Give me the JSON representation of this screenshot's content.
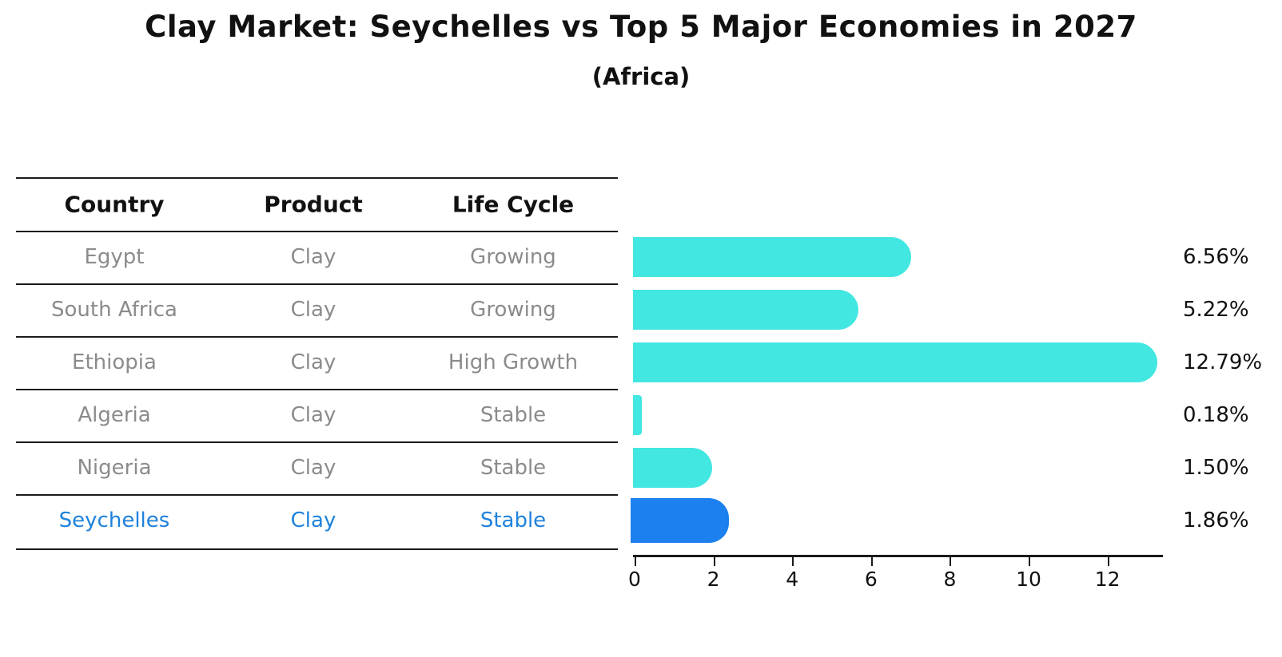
{
  "title": "Clay Market: Seychelles vs Top 5 Major Economies in 2027",
  "subtitle": "(Africa)",
  "table": {
    "headers": [
      "Country",
      "Product",
      "Life Cycle"
    ],
    "rows": [
      {
        "country": "Egypt",
        "product": "Clay",
        "life_cycle": "Growing",
        "highlight": false
      },
      {
        "country": "South Africa",
        "product": "Clay",
        "life_cycle": "Growing",
        "highlight": false
      },
      {
        "country": "Ethiopia",
        "product": "Clay",
        "life_cycle": "High Growth",
        "highlight": false
      },
      {
        "country": "Algeria",
        "product": "Clay",
        "life_cycle": "Stable",
        "highlight": false
      },
      {
        "country": "Nigeria",
        "product": "Clay",
        "life_cycle": "Stable",
        "highlight": false
      },
      {
        "country": "Seychelles",
        "product": "Clay",
        "life_cycle": "Stable",
        "highlight": true
      }
    ]
  },
  "chart_data": {
    "type": "bar",
    "orientation": "horizontal",
    "title": "Clay Market: Seychelles vs Top 5 Major Economies in 2027",
    "subtitle": "(Africa)",
    "categories": [
      "Egypt",
      "South Africa",
      "Ethiopia",
      "Algeria",
      "Nigeria",
      "Seychelles"
    ],
    "values": [
      6.56,
      5.22,
      12.79,
      0.18,
      1.5,
      1.86
    ],
    "value_labels": [
      "6.56%",
      "5.22%",
      "12.79%",
      "0.18%",
      "1.50%",
      "1.86%"
    ],
    "xlabel": "",
    "ylabel": "",
    "xticks": [
      0,
      2,
      4,
      6,
      8,
      10,
      12
    ],
    "xlim": [
      0,
      13.4
    ],
    "grid": false,
    "legend": false,
    "highlight_index": 5
  },
  "colors": {
    "bar_cyan": "#42E7E1",
    "highlight_blue": "#1C80EE",
    "highlight_text": "#1E82DC",
    "table_text_gray": "#8B8B8B",
    "line_black": "#1A1A1A"
  }
}
